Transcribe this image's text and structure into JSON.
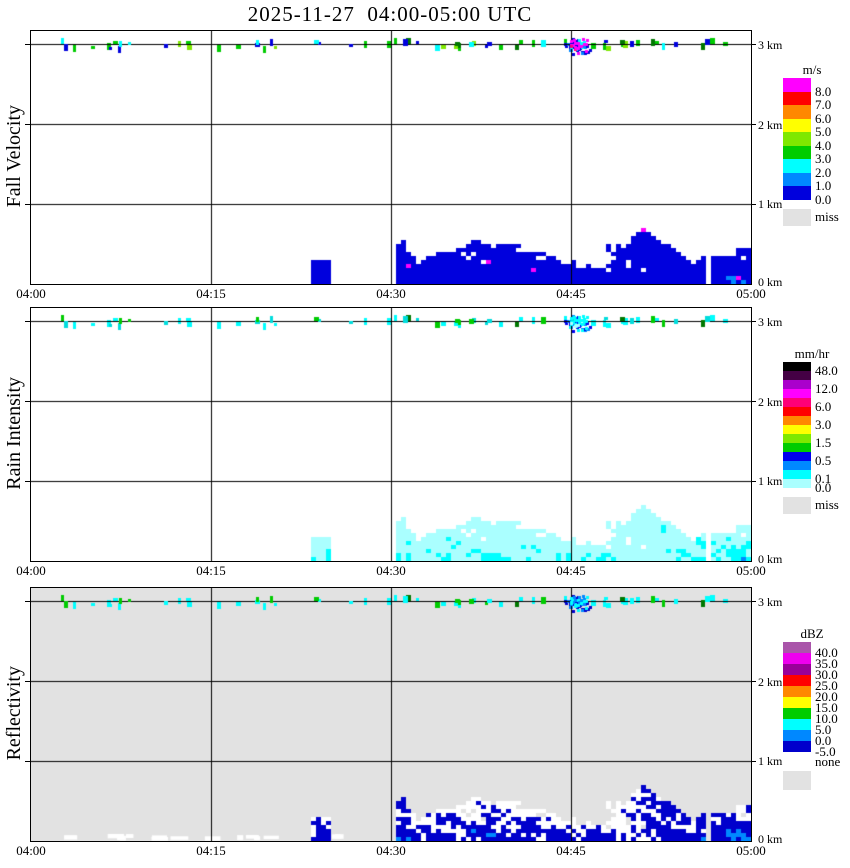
{
  "title": "2025-11-27  04:00-05:00 UTC",
  "chart_data": {
    "type": "heatmap",
    "description": "Vertically pointing radar time-height sections, three stacked panels sharing the same time axis",
    "time_axis": {
      "start": "04:00",
      "end": "05:00",
      "tick_labels": [
        "04:00",
        "04:15",
        "04:30",
        "04:45",
        "05:00"
      ],
      "gridlines_at": [
        "04:15",
        "04:30",
        "04:45"
      ]
    },
    "height_axis": {
      "unit": "km",
      "min_km": 0,
      "max_km": 3.2,
      "gridline_km": [
        3,
        2,
        1
      ],
      "right_labels": [
        "3 km",
        "2 km",
        "1 km",
        "0 km"
      ]
    },
    "panels": [
      {
        "label": "Fall Velocity",
        "units": "m/s",
        "background": "#ffffff",
        "colorbar": {
          "title": "m/s",
          "band_colors": [
            "#ff00ff",
            "#ff0000",
            "#ff8800",
            "#ffff00",
            "#7fe800",
            "#00cc00",
            "#00ffff",
            "#0088ff",
            "#0000dd"
          ],
          "band_labels": [
            "8.0",
            "7.0",
            "6.0",
            "5.0",
            "4.0",
            "3.0",
            "2.0",
            "1.0",
            "0.0"
          ],
          "missing": {
            "label": "miss",
            "color": "#e2e2e2"
          }
        },
        "features": {
          "echo_3km_line": {
            "height_km": 3.0,
            "dot_colors": [
              "#00cc00",
              "#7fe800",
              "#0000dd",
              "#00ffff",
              "#007700"
            ]
          },
          "burst_0445": {
            "time": "04:45",
            "height_km": 3.0,
            "colors": [
              "#0000dd",
              "#0088ff",
              "#00ffff",
              "#ff00ff",
              "#ff0077"
            ]
          },
          "low_level_precip": {
            "time_start": "04:24",
            "time_end": "05:00",
            "top_km": 0.8,
            "colors": [
              "#0000dd",
              "#0088ff",
              "#ff00ff"
            ],
            "note": "mostly 0-1 m/s dark blue, patches 1-2 m/s, rare 8+ m/s magenta near 04:34"
          }
        }
      },
      {
        "label": "Rain Intensity",
        "units": "mm/hr",
        "background": "#ffffff",
        "colorbar": {
          "title": "mm/hr",
          "band_colors": [
            "#000000",
            "#440044",
            "#aa00cc",
            "#ff00ff",
            "#ff0077",
            "#ff0000",
            "#ff8800",
            "#ffff00",
            "#7fe800",
            "#00cc00",
            "#0000ee",
            "#0088ff",
            "#00ffff",
            "#aaffff"
          ],
          "band_labels": [
            "48.0",
            null,
            "12.0",
            null,
            "6.0",
            null,
            "3.0",
            null,
            "1.5",
            null,
            "0.5",
            null,
            "0.1",
            "0.0"
          ],
          "missing": {
            "label": "miss",
            "color": "#e2e2e2"
          }
        },
        "features": {
          "echo_3km_line": {
            "height_km": 3.0,
            "dot_colors": [
              "#00ffff",
              "#00dddd",
              "#00cc00",
              "#007700"
            ]
          },
          "burst_0445": {
            "time": "04:45",
            "height_km": 3.0,
            "colors": [
              "#0000ee",
              "#0088ff",
              "#00ffff",
              "#aaffff"
            ]
          },
          "low_level_precip": {
            "time_start": "04:24",
            "time_end": "05:00",
            "top_km": 0.8,
            "colors": [
              "#aaffff",
              "#00ffff",
              "#0088ff",
              "#0000ee"
            ],
            "note": "mostly 0.0-0.1 mm/hr pale cyan with 0.1-0.5 cyan patches and 0.5-1.5 blue cores"
          }
        }
      },
      {
        "label": "Reflectivity",
        "units": "dBZ",
        "background": "#e2e2e2",
        "colorbar": {
          "title": "dBZ",
          "band_colors": [
            "#aa55aa",
            "#ee00ee",
            "#990099",
            "#ff0000",
            "#ff8800",
            "#ffff00",
            "#00cc00",
            "#00ffff",
            "#0088ff",
            "#0000cc"
          ],
          "band_labels": [
            "40.0",
            "35.0",
            "30.0",
            "25.0",
            "20.0",
            "15.0",
            "10.0",
            "5.0",
            "0.0",
            "-5.0"
          ],
          "missing": {
            "label": "none",
            "color": "#e2e2e2"
          }
        },
        "features": {
          "echo_3km_line": {
            "height_km": 3.0,
            "dot_colors": [
              "#00ffff",
              "#00cc00",
              "#007700"
            ]
          },
          "burst_0445": {
            "time": "04:45",
            "height_km": 3.0,
            "colors": [
              "#0000cc",
              "#0088ff",
              "#00ffff"
            ]
          },
          "low_level_precip": {
            "time_start": "04:24",
            "time_end": "05:00",
            "top_km": 0.8,
            "colors": [
              "#ffffff",
              "#0000cc",
              "#0088ff",
              "#00ffff",
              "#00cc00"
            ],
            "note": "white fringe, -5-0 dBZ dark blue edges, 0-5 blue, 5-10 cyan cores, 10-15 green specks on gray no-data background"
          }
        }
      }
    ]
  }
}
